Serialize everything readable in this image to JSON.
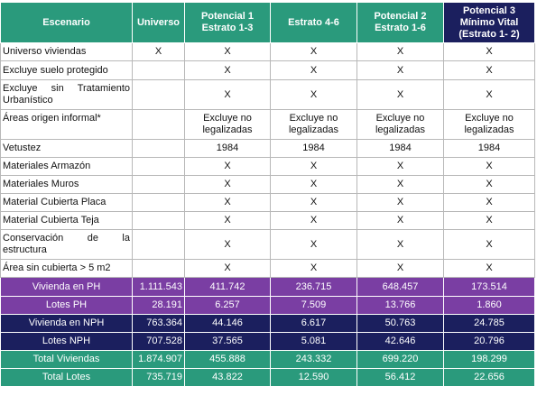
{
  "header": [
    "Escenario",
    "Universo",
    "Potencial 1 Estrato 1-3",
    "Estrato 4-6",
    "Potencial 2 Estrato 1-6",
    "Potencial 3 Mínimo Vital (Estrato 1- 2)"
  ],
  "criteria_rows": [
    {
      "label": "Universo viviendas",
      "values": [
        "X",
        "X",
        "X",
        "X",
        "X"
      ]
    },
    {
      "label": "Excluye suelo protegido",
      "values": [
        "",
        "X",
        "X",
        "X",
        "X"
      ]
    },
    {
      "label": "Excluye sin Tratamiento Urbanístico",
      "values": [
        "",
        "X",
        "X",
        "X",
        "X"
      ]
    },
    {
      "label": "Áreas origen informal*",
      "values": [
        "",
        "Excluye no legalizadas",
        "Excluye no legalizadas",
        "Excluye no legalizadas",
        "Excluye no legalizadas"
      ]
    },
    {
      "label": "Vetustez",
      "values": [
        "",
        "1984",
        "1984",
        "1984",
        "1984"
      ]
    },
    {
      "label": "Materiales Armazón",
      "values": [
        "",
        "X",
        "X",
        "X",
        "X"
      ]
    },
    {
      "label": "Materiales Muros",
      "values": [
        "",
        "X",
        "X",
        "X",
        "X"
      ]
    },
    {
      "label": "Material Cubierta Placa",
      "values": [
        "",
        "X",
        "X",
        "X",
        "X"
      ]
    },
    {
      "label": "Material Cubierta Teja",
      "values": [
        "",
        "X",
        "X",
        "X",
        "X"
      ]
    },
    {
      "label": "Conservación de la estructura",
      "values": [
        "",
        "X",
        "X",
        "X",
        "X"
      ]
    },
    {
      "label": "Área sin cubierta > 5 m2",
      "values": [
        "",
        "X",
        "X",
        "X",
        "X"
      ]
    }
  ],
  "summary_rows": [
    {
      "label": "Vivienda en PH",
      "values": [
        "1.111.543",
        "411.742",
        "236.715",
        "648.457",
        "173.514"
      ]
    },
    {
      "label": "Lotes PH",
      "values": [
        "28.191",
        "6.257",
        "7.509",
        "13.766",
        "1.860"
      ]
    },
    {
      "label": "Vivienda en NPH",
      "values": [
        "763.364",
        "44.146",
        "6.617",
        "50.763",
        "24.785"
      ]
    },
    {
      "label": "Lotes NPH",
      "values": [
        "707.528",
        "37.565",
        "5.081",
        "42.646",
        "20.796"
      ]
    },
    {
      "label": "Total Viviendas",
      "values": [
        "1.874.907",
        "455.888",
        "243.332",
        "699.220",
        "198.299"
      ]
    },
    {
      "label": "Total Lotes",
      "values": [
        "735.719",
        "43.822",
        "12.590",
        "56.412",
        "22.656"
      ]
    }
  ],
  "colors": {
    "teal": "#2a9a7c",
    "navy": "#1b1f5e",
    "purple": "#7a3ea3"
  }
}
